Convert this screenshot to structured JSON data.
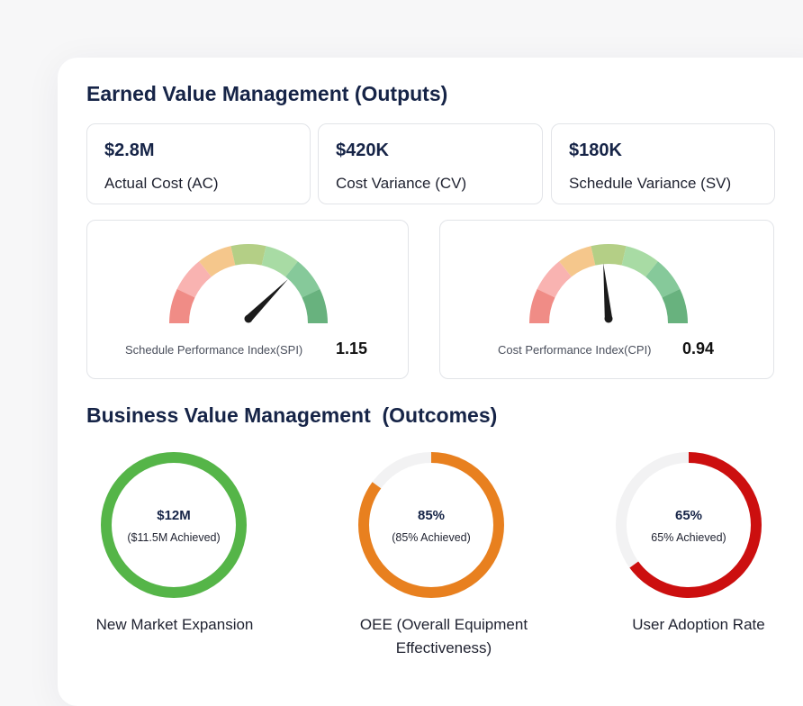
{
  "earned_value": {
    "title": "Earned Value Management (Outputs)",
    "stats": [
      {
        "value": "$2.8M",
        "label": "Actual Cost (AC)"
      },
      {
        "value": "$420K",
        "label": "Cost Variance (CV)"
      },
      {
        "value": "$180K",
        "label": "Schedule Variance (SV)"
      }
    ],
    "gauges": [
      {
        "label": "Schedule Performance Index(SPI)",
        "value": "1.15",
        "needle_fraction": 0.75
      },
      {
        "label": "Cost Performance Index(CPI)",
        "value": "0.94",
        "needle_fraction": 0.47
      }
    ],
    "gauge_segment_colors": [
      "#f08c86",
      "#f9b3b1",
      "#f5c78c",
      "#b4cf86",
      "#a8dba4",
      "#86c99a",
      "#68b27e"
    ]
  },
  "business_value": {
    "title": "Business Value Management  (Outcomes)",
    "metrics": [
      {
        "value": "$12M",
        "sub": "($11.5M Achieved)",
        "caption_lines": [
          "New Market Expansion"
        ],
        "progress": 1.0,
        "color": "#55b548"
      },
      {
        "value": "85%",
        "sub": "(85% Achieved)",
        "caption_lines": [
          "OEE (Overall Equipment",
          "Effectiveness)"
        ],
        "progress": 0.85,
        "color": "#e8801f"
      },
      {
        "value": "65%",
        "sub": "65% Achieved)",
        "caption_lines": [
          "User Adoption Rate"
        ],
        "progress": 0.65,
        "color": "#cc0f0f"
      }
    ],
    "track_color": "#f2f2f3"
  }
}
